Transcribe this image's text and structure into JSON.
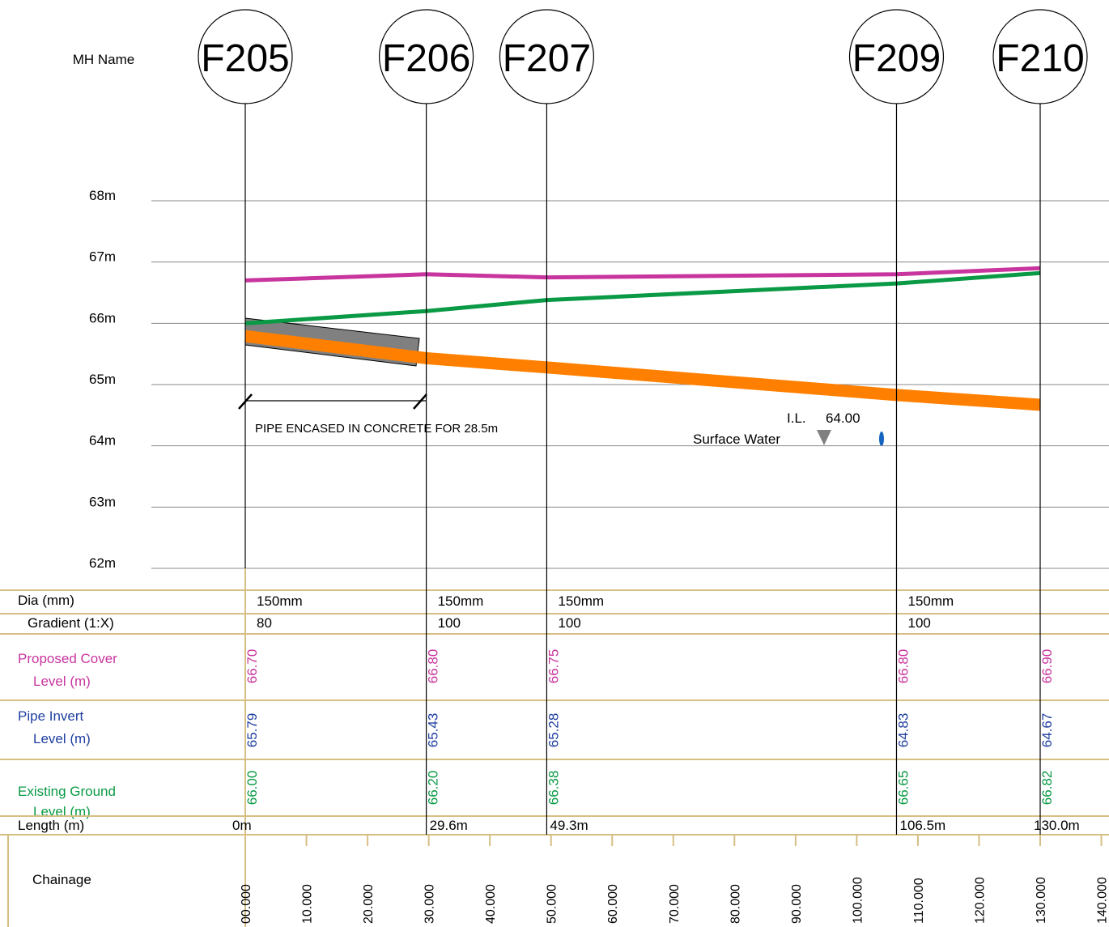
{
  "labels": {
    "mh_name": "MH Name",
    "dia": "Dia (mm)",
    "gradient": "Gradient (1:X)",
    "cover_1": "Proposed Cover",
    "cover_2": "Level (m)",
    "invert_1": "Pipe Invert",
    "invert_2": "Level (m)",
    "ground_1": "Existing Ground",
    "ground_2": "Level (m)",
    "length": "Length (m)",
    "chainage": "Chainage"
  },
  "levels": [
    "68m",
    "67m",
    "66m",
    "65m",
    "64m",
    "63m",
    "62m"
  ],
  "manholes": [
    {
      "name": "F205",
      "length": "0m",
      "cover": "66.70",
      "invert": "65.79",
      "ground": "66.00"
    },
    {
      "name": "F206",
      "length": "29.6m",
      "cover": "66.80",
      "invert": "65.43",
      "ground": "66.20"
    },
    {
      "name": "F207",
      "length": "49.3m",
      "cover": "66.75",
      "invert": "65.28",
      "ground": "66.38"
    },
    {
      "name": "F209",
      "length": "106.5m",
      "cover": "66.80",
      "invert": "64.83",
      "ground": "66.65"
    },
    {
      "name": "F210",
      "length": "130.0m",
      "cover": "66.90",
      "invert": "64.67",
      "ground": "66.82"
    }
  ],
  "pipes": [
    {
      "dia": "150mm",
      "gradient": "80"
    },
    {
      "dia": "150mm",
      "gradient": "100"
    },
    {
      "dia": "150mm",
      "gradient": "100"
    },
    {
      "dia": "150mm",
      "gradient": "100"
    }
  ],
  "chainage_ticks": [
    "00.000",
    "10.000",
    "20.000",
    "30.000",
    "40.000",
    "50.000",
    "60.000",
    "70.000",
    "80.000",
    "90.000",
    "100.000",
    "110.000",
    "120.000",
    "130.000",
    "140.000"
  ],
  "annotations": {
    "encased": "PIPE ENCASED IN CONCRETE FOR 28.5m",
    "il": "I.L.",
    "il_value": "64.00",
    "outfall": "Surface Water"
  }
}
